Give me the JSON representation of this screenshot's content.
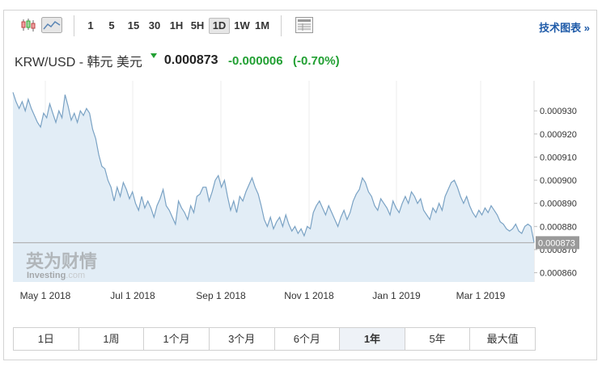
{
  "toolbar": {
    "intervals": [
      "1",
      "5",
      "15",
      "30",
      "1H",
      "5H",
      "1D",
      "1W",
      "1M"
    ],
    "active_interval": "1D",
    "tech_chart_link": "技术图表",
    "tech_chart_arrow": "»"
  },
  "quote": {
    "pair": "KRW/USD - 韩元 美元",
    "price": "0.000873",
    "change": "-0.000006",
    "change_pct": "(-0.70%)",
    "direction": "down"
  },
  "colors": {
    "positive_green": "#22a033",
    "line": "#7aa2c4",
    "area": "#e2edf6",
    "link": "#1e5aa8"
  },
  "watermark": {
    "cn": "英为财情",
    "en_prefix": "Investing",
    "en_suffix": ".com"
  },
  "chart_data": {
    "type": "area",
    "x_ticks": [
      "May 1 2018",
      "Jul 1 2018",
      "Sep 1 2018",
      "Nov 1 2018",
      "Jan 1 2019",
      "Mar 1 2019"
    ],
    "y_ticks": [
      "0.000930",
      "0.000920",
      "0.000910",
      "0.000900",
      "0.000890",
      "0.000880",
      "0.000870",
      "0.000860"
    ],
    "y_range": [
      0.000856,
      0.000943
    ],
    "current_value": 0.000873,
    "current_label": "0.000873",
    "grid": "vertical",
    "series": [
      {
        "values": [
          0.000938,
          0.000934,
          0.000931,
          0.000934,
          0.00093,
          0.000935,
          0.000931,
          0.000928,
          0.000925,
          0.000923,
          0.000929,
          0.000927,
          0.000933,
          0.000929,
          0.000925,
          0.00093,
          0.000927,
          0.000937,
          0.000932,
          0.000926,
          0.000929,
          0.000925,
          0.00093,
          0.000928,
          0.000931,
          0.000929,
          0.000922,
          0.000918,
          0.000911,
          0.000906,
          0.000905,
          0.0009,
          0.000897,
          0.000891,
          0.000897,
          0.000893,
          0.000899,
          0.000896,
          0.000892,
          0.000895,
          0.00089,
          0.000887,
          0.000893,
          0.000888,
          0.000891,
          0.000888,
          0.000884,
          0.000889,
          0.000892,
          0.000896,
          0.000889,
          0.000887,
          0.000884,
          0.000881,
          0.000891,
          0.000888,
          0.000886,
          0.000883,
          0.000889,
          0.000886,
          0.000893,
          0.000894,
          0.000897,
          0.000897,
          0.000891,
          0.000895,
          0.0009,
          0.000902,
          0.000897,
          0.0009,
          0.000893,
          0.000887,
          0.000891,
          0.000886,
          0.000893,
          0.000891,
          0.000895,
          0.000898,
          0.000901,
          0.000897,
          0.000894,
          0.000889,
          0.000883,
          0.00088,
          0.000884,
          0.000879,
          0.000882,
          0.000884,
          0.00088,
          0.000885,
          0.000881,
          0.000878,
          0.00088,
          0.000877,
          0.000879,
          0.000876,
          0.00088,
          0.000879,
          0.000886,
          0.000889,
          0.000891,
          0.000888,
          0.000885,
          0.000889,
          0.000886,
          0.000883,
          0.00088,
          0.000884,
          0.000887,
          0.000883,
          0.000886,
          0.000891,
          0.000894,
          0.000896,
          0.000901,
          0.000899,
          0.000895,
          0.000893,
          0.000889,
          0.000887,
          0.000892,
          0.00089,
          0.000888,
          0.000885,
          0.000891,
          0.000888,
          0.000886,
          0.00089,
          0.000893,
          0.00089,
          0.000895,
          0.000893,
          0.00089,
          0.000892,
          0.000887,
          0.000885,
          0.000883,
          0.000888,
          0.000886,
          0.00089,
          0.000887,
          0.000893,
          0.000896,
          0.000899,
          0.0009,
          0.000897,
          0.000893,
          0.00089,
          0.000893,
          0.000889,
          0.000886,
          0.000884,
          0.000887,
          0.000885,
          0.000888,
          0.000886,
          0.000889,
          0.000887,
          0.000885,
          0.000882,
          0.000881,
          0.000879,
          0.000878,
          0.000879,
          0.000881,
          0.000878,
          0.000877,
          0.00088,
          0.000881,
          0.00088,
          0.000873
        ]
      }
    ]
  },
  "ranges": [
    "1日",
    "1周",
    "1个月",
    "3个月",
    "6个月",
    "1年",
    "5年",
    "最大值"
  ],
  "active_range": "1年"
}
